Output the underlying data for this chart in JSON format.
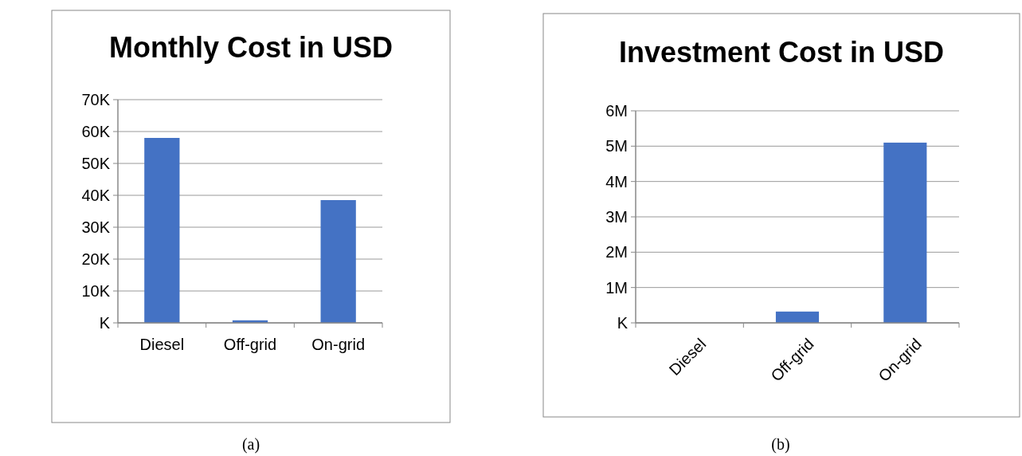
{
  "chart_data": [
    {
      "type": "bar",
      "title": "Monthly Cost in USD",
      "categories": [
        "Diesel",
        "Off-grid",
        "On-grid"
      ],
      "values": [
        58000,
        800,
        38500
      ],
      "color": "#4472c4",
      "ylim": [
        0,
        70000
      ],
      "yticks": [
        {
          "value": 0,
          "label": "K"
        },
        {
          "value": 10000,
          "label": "10K"
        },
        {
          "value": 20000,
          "label": "20K"
        },
        {
          "value": 30000,
          "label": "30K"
        },
        {
          "value": 40000,
          "label": "40K"
        },
        {
          "value": 50000,
          "label": "50K"
        },
        {
          "value": 60000,
          "label": "60K"
        },
        {
          "value": 70000,
          "label": "70K"
        }
      ],
      "grid": "y",
      "annotations": [
        "(a)"
      ]
    },
    {
      "type": "bar",
      "title": "Investment Cost in USD",
      "categories": [
        "Diesel",
        "Off-grid",
        "On-grid"
      ],
      "values": [
        0,
        320000,
        5100000
      ],
      "color": "#4472c4",
      "ylim": [
        0,
        6000000
      ],
      "yticks": [
        {
          "value": 0,
          "label": "K"
        },
        {
          "value": 1000000,
          "label": "1M"
        },
        {
          "value": 2000000,
          "label": "2M"
        },
        {
          "value": 3000000,
          "label": "3M"
        },
        {
          "value": 4000000,
          "label": "4M"
        },
        {
          "value": 5000000,
          "label": "5M"
        },
        {
          "value": 6000000,
          "label": "6M"
        }
      ],
      "grid": "y",
      "annotations": [
        "(b)"
      ]
    }
  ]
}
